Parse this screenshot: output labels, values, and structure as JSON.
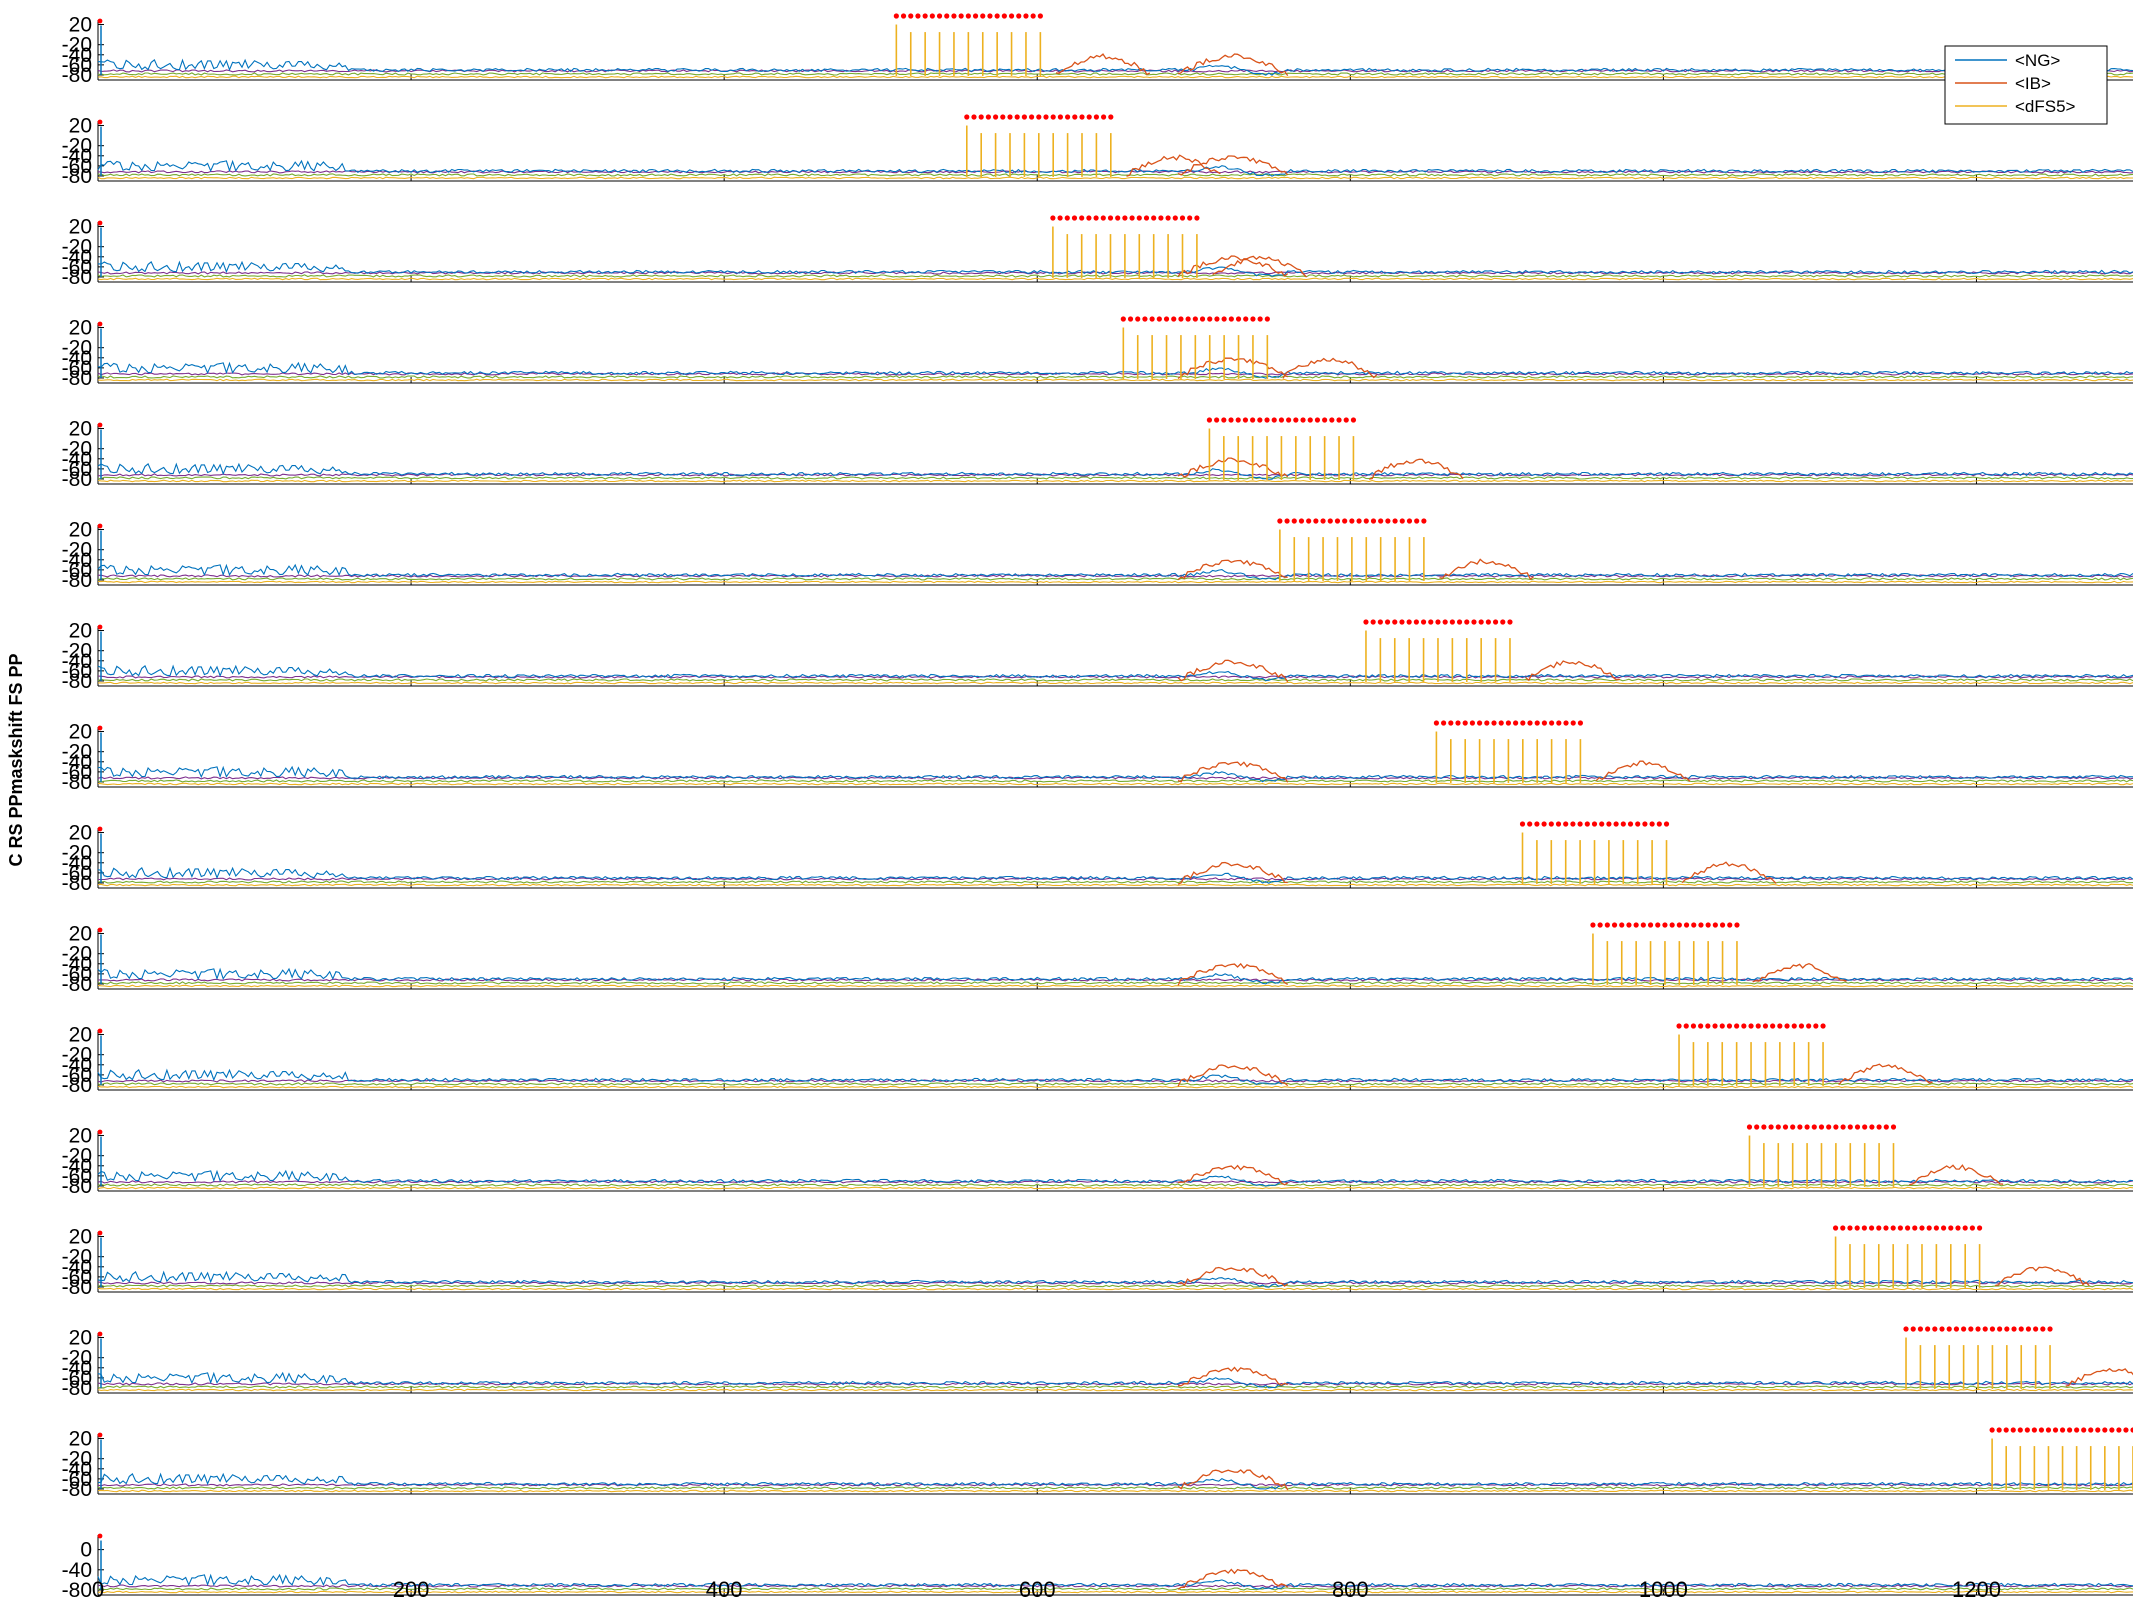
{
  "chart_data": {
    "type": "line",
    "ylabel": "C RS PPmaskshift FS PP",
    "x_ticks": [
      0,
      200,
      400,
      600,
      800,
      1000,
      1200
    ],
    "xlim": [
      0,
      1300
    ],
    "ylim": [
      -90,
      25
    ],
    "y_ticks_main": [
      20,
      -20,
      -40,
      -60,
      -80
    ],
    "y_ticks_last": [
      0,
      -40,
      -80
    ],
    "legend": {
      "location": "top-right",
      "entries": [
        {
          "name": "<NG>",
          "color": "#0072BD"
        },
        {
          "name": "<IB>",
          "color": "#D95319"
        },
        {
          "name": "<dFS5>",
          "color": "#EDB120"
        }
      ]
    },
    "series_colors": {
      "NG": "#0072BD",
      "IB": "#D95319",
      "dFS5": "#EDB120",
      "purple": "#7E2F8E",
      "green": "#77AC30",
      "cyan": "#4DBEEE",
      "baseline": "#A2142F"
    },
    "panels": [
      {
        "index": 1,
        "pulse_start": 510,
        "pulse_end": 602,
        "pulses": 11
      },
      {
        "index": 2,
        "pulse_start": 555,
        "pulse_end": 647,
        "pulses": 11
      },
      {
        "index": 3,
        "pulse_start": 610,
        "pulse_end": 702,
        "pulses": 11
      },
      {
        "index": 4,
        "pulse_start": 655,
        "pulse_end": 747,
        "pulses": 11
      },
      {
        "index": 5,
        "pulse_start": 710,
        "pulse_end": 802,
        "pulses": 11
      },
      {
        "index": 6,
        "pulse_start": 755,
        "pulse_end": 847,
        "pulses": 11
      },
      {
        "index": 7,
        "pulse_start": 810,
        "pulse_end": 902,
        "pulses": 11
      },
      {
        "index": 8,
        "pulse_start": 855,
        "pulse_end": 947,
        "pulses": 11
      },
      {
        "index": 9,
        "pulse_start": 910,
        "pulse_end": 1002,
        "pulses": 11
      },
      {
        "index": 10,
        "pulse_start": 955,
        "pulse_end": 1047,
        "pulses": 11
      },
      {
        "index": 11,
        "pulse_start": 1010,
        "pulse_end": 1102,
        "pulses": 11
      },
      {
        "index": 12,
        "pulse_start": 1055,
        "pulse_end": 1147,
        "pulses": 11
      },
      {
        "index": 13,
        "pulse_start": 1110,
        "pulse_end": 1202,
        "pulses": 11
      },
      {
        "index": 14,
        "pulse_start": 1155,
        "pulse_end": 1247,
        "pulses": 11
      },
      {
        "index": 15,
        "pulse_start": 1210,
        "pulse_end": 1300,
        "pulses": 11
      },
      {
        "index": 16,
        "pulse_start": null,
        "pulse_end": null,
        "pulses": 0
      }
    ]
  }
}
